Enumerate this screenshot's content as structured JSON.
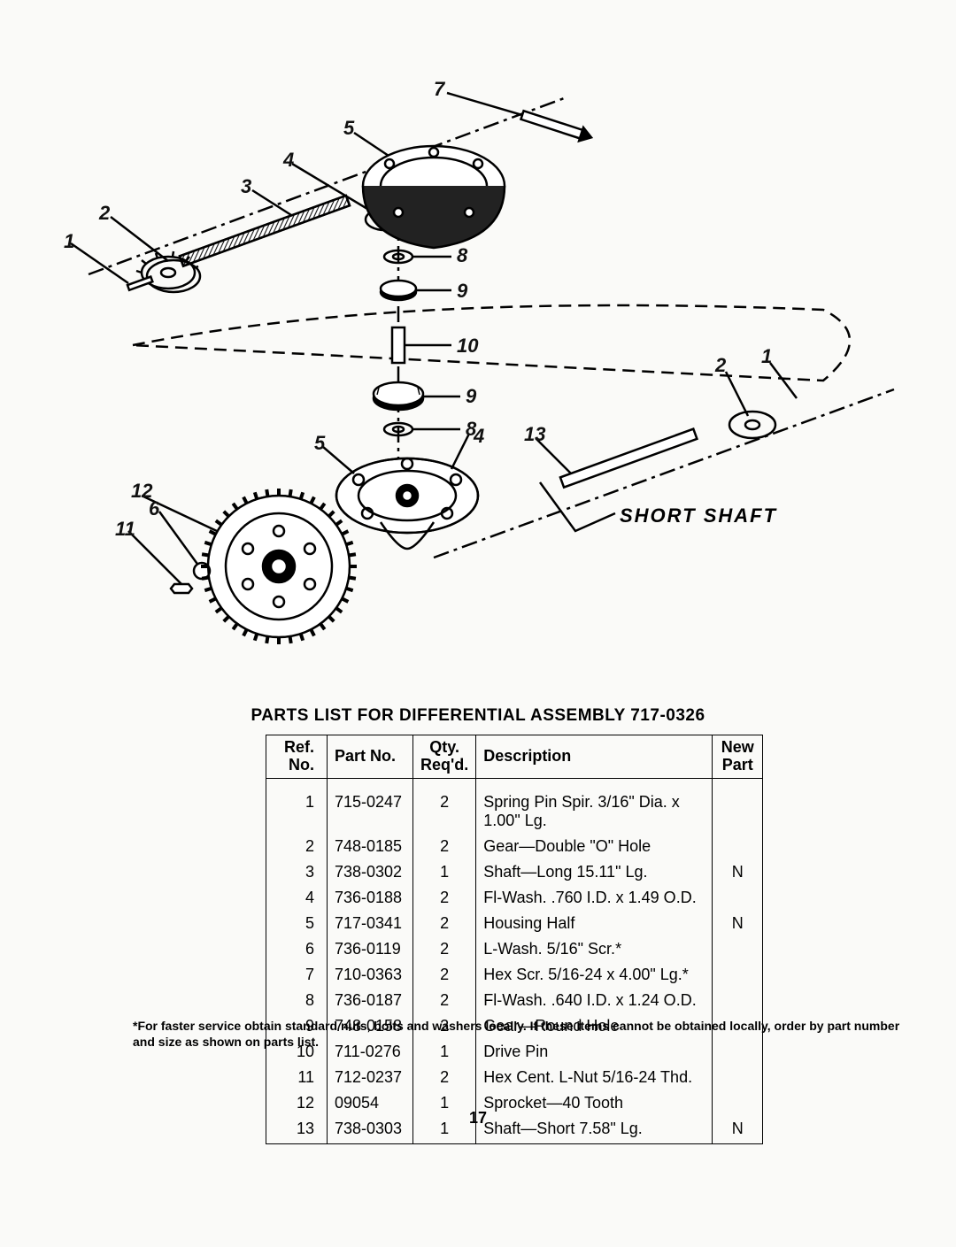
{
  "title": "PARTS LIST FOR DIFFERENTIAL ASSEMBLY  717-0326",
  "footnote": "*For faster service obtain standard nuts, bolts and washers locally. If these items cannot be obtained locally, order by part number and size as shown on parts list.",
  "page_number": "17",
  "short_shaft_label": "SHORT   SHAFT",
  "diagram_labels": {
    "l1": "1",
    "l2a": "2",
    "l3": "3",
    "l4a": "4",
    "l5a": "5",
    "l6": "6",
    "l7": "7",
    "l8a": "8",
    "l9a": "9",
    "l10": "10",
    "l9b": "9",
    "l8b": "8",
    "l5b": "5",
    "l4b": "4",
    "l13": "13",
    "l2b": "2",
    "l1b": "1",
    "l11": "11",
    "l12": "12"
  },
  "table": {
    "headers": {
      "ref": "Ref.\nNo.",
      "part": "Part\nNo.",
      "qty": "Qty.\nReq'd.",
      "desc": "Description",
      "new": "New\nPart"
    },
    "rows": [
      {
        "ref": "1",
        "part": "715-0247",
        "qty": "2",
        "desc": "Spring Pin Spir. 3/16\" Dia. x 1.00\" Lg.",
        "new": ""
      },
      {
        "ref": "2",
        "part": "748-0185",
        "qty": "2",
        "desc": "Gear—Double \"O\" Hole",
        "new": ""
      },
      {
        "ref": "3",
        "part": "738-0302",
        "qty": "1",
        "desc": "Shaft—Long 15.11\" Lg.",
        "new": "N"
      },
      {
        "ref": "4",
        "part": "736-0188",
        "qty": "2",
        "desc": "Fl-Wash. .760 I.D. x 1.49 O.D.",
        "new": ""
      },
      {
        "ref": "5",
        "part": "717-0341",
        "qty": "2",
        "desc": "Housing Half",
        "new": "N"
      },
      {
        "ref": "6",
        "part": "736-0119",
        "qty": "2",
        "desc": "L-Wash. 5/16\" Scr.*",
        "new": ""
      },
      {
        "ref": "7",
        "part": "710-0363",
        "qty": "2",
        "desc": "Hex Scr. 5/16-24 x 4.00\" Lg.*",
        "new": ""
      },
      {
        "ref": "8",
        "part": "736-0187",
        "qty": "2",
        "desc": "Fl-Wash. .640 I.D. x 1.24 O.D.",
        "new": ""
      },
      {
        "ref": "9",
        "part": "748-0158",
        "qty": "2",
        "desc": "Gear—Round Hole",
        "new": ""
      },
      {
        "ref": "10",
        "part": "711-0276",
        "qty": "1",
        "desc": "Drive Pin",
        "new": ""
      },
      {
        "ref": "11",
        "part": "712-0237",
        "qty": "2",
        "desc": "Hex Cent. L-Nut 5/16-24 Thd.",
        "new": ""
      },
      {
        "ref": "12",
        "part": "09054",
        "qty": "1",
        "desc": "Sprocket—40 Tooth",
        "new": ""
      },
      {
        "ref": "13",
        "part": "738-0303",
        "qty": "1",
        "desc": "Shaft—Short 7.58\" Lg.",
        "new": "N"
      }
    ]
  },
  "styles": {
    "text_color": "#000000",
    "bg_color": "#fafaf8",
    "border_color": "#000000",
    "title_fontsize": 19,
    "table_fontsize": 18,
    "footnote_fontsize": 14
  }
}
